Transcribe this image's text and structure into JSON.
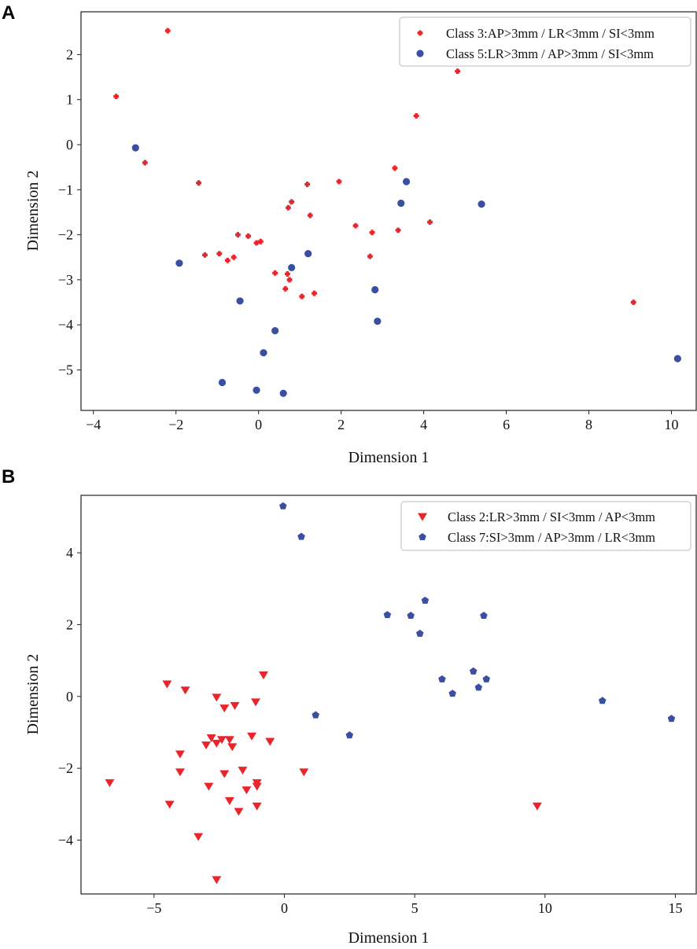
{
  "chart_data": [
    {
      "type": "scatter",
      "panel_label": "A",
      "xlabel": "Dimension 1",
      "ylabel": "Dimension 2",
      "xlim": [
        -4.3,
        10.6
      ],
      "ylim": [
        -5.9,
        2.95
      ],
      "xticks": [
        -4,
        -2,
        0,
        2,
        4,
        6,
        8,
        10
      ],
      "yticks": [
        2,
        1,
        0,
        -1,
        -2,
        -3,
        -4,
        -5
      ],
      "xtick_labels": [
        "−4",
        "−2",
        "0",
        "2",
        "4",
        "6",
        "8",
        "10"
      ],
      "ytick_labels": [
        "2",
        "1",
        "0",
        "−1",
        "−2",
        "−3",
        "−4",
        "−5"
      ],
      "legend_position": "top-right",
      "series": [
        {
          "name": "Class 3:AP>3mm / LR<3mm / SI<3mm",
          "marker": "plus",
          "color": "#e8252b",
          "points": [
            [
              -2.2,
              2.53
            ],
            [
              -3.45,
              1.07
            ],
            [
              -2.75,
              -0.4
            ],
            [
              -1.45,
              -0.85
            ],
            [
              -1.3,
              -2.45
            ],
            [
              -0.95,
              -2.42
            ],
            [
              -0.75,
              -2.57
            ],
            [
              -0.6,
              -2.5
            ],
            [
              -0.5,
              -2.0
            ],
            [
              -0.25,
              -2.03
            ],
            [
              -0.05,
              -2.18
            ],
            [
              0.05,
              -2.15
            ],
            [
              0.4,
              -2.85
            ],
            [
              0.65,
              -3.2
            ],
            [
              0.7,
              -2.87
            ],
            [
              0.72,
              -1.4
            ],
            [
              0.75,
              -3.0
            ],
            [
              0.8,
              -1.27
            ],
            [
              1.05,
              -3.37
            ],
            [
              1.18,
              -0.88
            ],
            [
              1.25,
              -1.57
            ],
            [
              1.35,
              -3.3
            ],
            [
              1.95,
              -0.82
            ],
            [
              2.35,
              -1.8
            ],
            [
              2.7,
              -2.48
            ],
            [
              2.75,
              -1.95
            ],
            [
              3.3,
              -0.52
            ],
            [
              3.38,
              -1.9
            ],
            [
              3.82,
              0.64
            ],
            [
              4.15,
              -1.72
            ],
            [
              4.82,
              1.63
            ],
            [
              9.08,
              -3.5
            ]
          ]
        },
        {
          "name": "Class 5:LR>3mm / AP>3mm / SI<3mm",
          "marker": "circle",
          "color": "#3a4fa0",
          "points": [
            [
              -2.98,
              -0.07
            ],
            [
              -1.92,
              -2.63
            ],
            [
              -0.45,
              -3.47
            ],
            [
              -0.88,
              -5.28
            ],
            [
              -0.05,
              -5.45
            ],
            [
              0.12,
              -4.62
            ],
            [
              0.4,
              -4.13
            ],
            [
              0.6,
              -5.52
            ],
            [
              0.8,
              -2.73
            ],
            [
              1.2,
              -2.42
            ],
            [
              2.82,
              -3.22
            ],
            [
              2.88,
              -3.92
            ],
            [
              3.45,
              -1.3
            ],
            [
              3.58,
              -0.82
            ],
            [
              5.4,
              -1.32
            ],
            [
              10.15,
              -4.75
            ]
          ]
        }
      ]
    },
    {
      "type": "scatter",
      "panel_label": "B",
      "xlabel": "Dimension 1",
      "ylabel": "Dimension 2",
      "xlim": [
        -7.8,
        15.8
      ],
      "ylim": [
        -5.5,
        5.6
      ],
      "xticks": [
        -5,
        0,
        5,
        10,
        15
      ],
      "yticks": [
        4,
        2,
        0,
        -2,
        -4
      ],
      "xtick_labels": [
        "−5",
        "0",
        "5",
        "10",
        "15"
      ],
      "ytick_labels": [
        "4",
        "2",
        "0",
        "−2",
        "−4"
      ],
      "legend_position": "top-right",
      "series": [
        {
          "name": "Class 2:LR>3mm / SI<3mm / AP<3mm",
          "marker": "triangle-down",
          "color": "#e8252b",
          "points": [
            [
              -6.7,
              -2.4
            ],
            [
              -4.5,
              0.35
            ],
            [
              -4.4,
              -3.0
            ],
            [
              -4.0,
              -1.6
            ],
            [
              -4.0,
              -2.1
            ],
            [
              -3.8,
              0.18
            ],
            [
              -3.3,
              -3.9
            ],
            [
              -3.0,
              -1.35
            ],
            [
              -2.9,
              -2.5
            ],
            [
              -2.8,
              -1.15
            ],
            [
              -2.6,
              -0.02
            ],
            [
              -2.6,
              -1.3
            ],
            [
              -2.6,
              -5.1
            ],
            [
              -2.4,
              -1.2
            ],
            [
              -2.3,
              -0.32
            ],
            [
              -2.3,
              -2.15
            ],
            [
              -2.1,
              -1.2
            ],
            [
              -2.1,
              -2.9
            ],
            [
              -2.0,
              -1.4
            ],
            [
              -1.9,
              -0.25
            ],
            [
              -1.75,
              -3.2
            ],
            [
              -1.6,
              -2.05
            ],
            [
              -1.45,
              -2.6
            ],
            [
              -1.25,
              -1.1
            ],
            [
              -1.1,
              -0.15
            ],
            [
              -1.05,
              -2.4
            ],
            [
              -1.05,
              -2.5
            ],
            [
              -1.05,
              -3.05
            ],
            [
              -0.8,
              0.6
            ],
            [
              -0.55,
              -1.25
            ],
            [
              0.75,
              -2.1
            ],
            [
              9.7,
              -3.05
            ]
          ]
        },
        {
          "name": "Class 7:SI>3mm / AP>3mm / LR<3mm",
          "marker": "pentagon",
          "color": "#3a4fa0",
          "points": [
            [
              -0.05,
              5.3
            ],
            [
              0.65,
              4.45
            ],
            [
              1.2,
              -0.52
            ],
            [
              2.5,
              -1.08
            ],
            [
              3.95,
              2.27
            ],
            [
              4.85,
              2.25
            ],
            [
              5.2,
              1.75
            ],
            [
              5.4,
              2.67
            ],
            [
              6.05,
              0.48
            ],
            [
              6.45,
              0.08
            ],
            [
              7.25,
              0.7
            ],
            [
              7.45,
              0.25
            ],
            [
              7.65,
              2.25
            ],
            [
              7.75,
              0.48
            ],
            [
              12.2,
              -0.12
            ],
            [
              14.85,
              -0.62
            ]
          ]
        }
      ]
    }
  ]
}
